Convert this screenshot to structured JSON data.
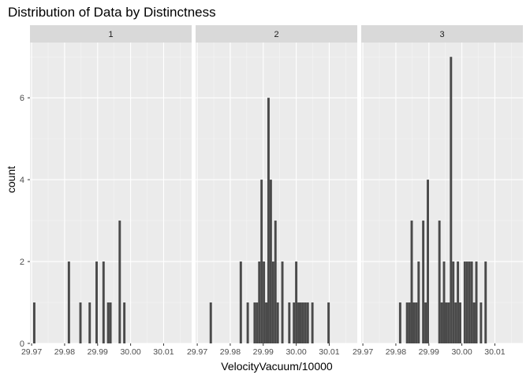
{
  "chart_data": {
    "type": "bar",
    "title": "Distribution of Data by Distinctness",
    "xlabel": "VelocityVacuum/10000",
    "ylabel": "count",
    "xlim": [
      29.9695,
      30.0185
    ],
    "ylim": [
      0,
      7.35
    ],
    "x_ticks": [
      {
        "value": 29.97,
        "label": "29.97"
      },
      {
        "value": 29.98,
        "label": "29.98"
      },
      {
        "value": 29.99,
        "label": "29.99"
      },
      {
        "value": 30.0,
        "label": "30.00"
      },
      {
        "value": 30.01,
        "label": "30.01"
      }
    ],
    "y_ticks": [
      {
        "value": 0,
        "label": "0"
      },
      {
        "value": 2,
        "label": "2"
      },
      {
        "value": 4,
        "label": "4"
      },
      {
        "value": 6,
        "label": "6"
      }
    ],
    "bin_width": 0.0007,
    "grid": true,
    "bar_color": "#4a4a4a",
    "panel_background": "#ebebeb",
    "strip_background": "#d9d9d9",
    "facets": [
      {
        "label": "1",
        "bins": [
          {
            "x": 29.9708,
            "count": 1
          },
          {
            "x": 29.9813,
            "count": 2
          },
          {
            "x": 29.9848,
            "count": 1
          },
          {
            "x": 29.9876,
            "count": 1
          },
          {
            "x": 29.9897,
            "count": 2
          },
          {
            "x": 29.9918,
            "count": 2
          },
          {
            "x": 29.9932,
            "count": 1
          },
          {
            "x": 29.9939,
            "count": 1
          },
          {
            "x": 29.9967,
            "count": 3
          },
          {
            "x": 29.9981,
            "count": 1
          }
        ]
      },
      {
        "label": "2",
        "bins": [
          {
            "x": 29.9741,
            "count": 1
          },
          {
            "x": 29.9832,
            "count": 2
          },
          {
            "x": 29.9853,
            "count": 1
          },
          {
            "x": 29.9874,
            "count": 1
          },
          {
            "x": 29.9881,
            "count": 1
          },
          {
            "x": 29.9888,
            "count": 2
          },
          {
            "x": 29.9895,
            "count": 4
          },
          {
            "x": 29.9902,
            "count": 2
          },
          {
            "x": 29.9909,
            "count": 1
          },
          {
            "x": 29.9916,
            "count": 6
          },
          {
            "x": 29.9923,
            "count": 4
          },
          {
            "x": 29.993,
            "count": 2
          },
          {
            "x": 29.9937,
            "count": 3
          },
          {
            "x": 29.9944,
            "count": 1
          },
          {
            "x": 29.9958,
            "count": 2
          },
          {
            "x": 29.9979,
            "count": 1
          },
          {
            "x": 29.9993,
            "count": 1
          },
          {
            "x": 30.0,
            "count": 2
          },
          {
            "x": 30.0007,
            "count": 1
          },
          {
            "x": 30.0014,
            "count": 1
          },
          {
            "x": 30.0021,
            "count": 1
          },
          {
            "x": 30.0028,
            "count": 1
          },
          {
            "x": 30.0035,
            "count": 1
          },
          {
            "x": 30.0049,
            "count": 1
          },
          {
            "x": 30.0098,
            "count": 1
          }
        ]
      },
      {
        "label": "3",
        "bins": [
          {
            "x": 29.9813,
            "count": 1
          },
          {
            "x": 29.9834,
            "count": 1
          },
          {
            "x": 29.9841,
            "count": 1
          },
          {
            "x": 29.9848,
            "count": 3
          },
          {
            "x": 29.9855,
            "count": 1
          },
          {
            "x": 29.9862,
            "count": 1
          },
          {
            "x": 29.9869,
            "count": 2
          },
          {
            "x": 29.9883,
            "count": 3
          },
          {
            "x": 29.989,
            "count": 1
          },
          {
            "x": 29.9897,
            "count": 4
          },
          {
            "x": 29.9932,
            "count": 3
          },
          {
            "x": 29.9939,
            "count": 1
          },
          {
            "x": 29.9946,
            "count": 2
          },
          {
            "x": 29.9953,
            "count": 1
          },
          {
            "x": 29.996,
            "count": 1
          },
          {
            "x": 29.9967,
            "count": 7
          },
          {
            "x": 29.9974,
            "count": 2
          },
          {
            "x": 29.9981,
            "count": 1
          },
          {
            "x": 29.9988,
            "count": 2
          },
          {
            "x": 29.9995,
            "count": 1
          },
          {
            "x": 30.0009,
            "count": 2
          },
          {
            "x": 30.0016,
            "count": 2
          },
          {
            "x": 30.0023,
            "count": 2
          },
          {
            "x": 30.003,
            "count": 2
          },
          {
            "x": 30.0037,
            "count": 1
          },
          {
            "x": 30.0044,
            "count": 2
          },
          {
            "x": 30.0058,
            "count": 1
          },
          {
            "x": 30.0072,
            "count": 2
          }
        ]
      }
    ]
  }
}
